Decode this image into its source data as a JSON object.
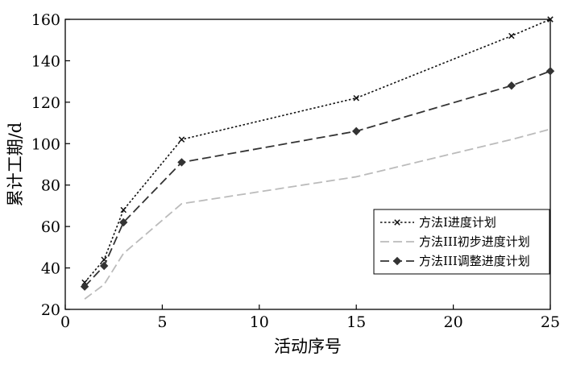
{
  "chart_data": {
    "type": "line",
    "xlabel": "活动序号",
    "ylabel": "累计工期/d",
    "xlim": [
      0,
      25
    ],
    "ylim": [
      20,
      160
    ],
    "x_ticks": [
      0,
      5,
      10,
      15,
      20,
      25
    ],
    "y_ticks": [
      20,
      40,
      60,
      80,
      100,
      120,
      140,
      160
    ],
    "x_tick_labels": [
      "0",
      "5",
      "10",
      "15",
      "20",
      "25"
    ],
    "y_tick_labels": [
      "20",
      "40",
      "60",
      "80",
      "100",
      "120",
      "140",
      "160"
    ],
    "grid": false,
    "legend_position": "lower-right",
    "series": [
      {
        "name": "方法I进度计划",
        "style": "dotted",
        "marker": "x",
        "color": "#111111",
        "x": [
          1,
          2,
          3,
          6,
          15,
          23,
          25
        ],
        "y": [
          33,
          44,
          68,
          102,
          122,
          152,
          160
        ]
      },
      {
        "name": "方法III初步进度计划",
        "style": "dashed",
        "marker": "none",
        "color": "#bbbbbb",
        "x": [
          1,
          2,
          3,
          6,
          15,
          23,
          25
        ],
        "y": [
          25,
          32,
          47,
          71,
          84,
          102,
          107
        ]
      },
      {
        "name": "方法III调整进度计划",
        "style": "dashed",
        "marker": "diamond",
        "color": "#333333",
        "x": [
          1,
          2,
          3,
          6,
          15,
          23,
          25
        ],
        "y": [
          31,
          41,
          62,
          91,
          106,
          128,
          135
        ]
      }
    ]
  }
}
